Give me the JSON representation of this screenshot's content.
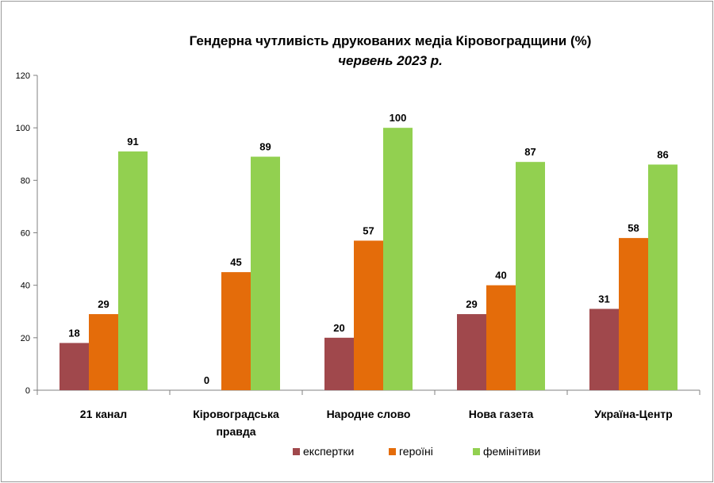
{
  "chart_data": {
    "type": "bar",
    "title": "Гендерна чутливість друкованих медіа Кіровоградщини (%)",
    "subtitle": "червень 2023 р.",
    "categories": [
      [
        "21 канал"
      ],
      [
        "Кіровоградська",
        "правда"
      ],
      [
        "Народне слово"
      ],
      [
        "Нова газета"
      ],
      [
        "Україна-Центр"
      ]
    ],
    "series": [
      {
        "name": "експертки",
        "color": "#a0484c",
        "values": [
          18,
          0,
          20,
          29,
          31
        ]
      },
      {
        "name": "героїні",
        "color": "#e46c0a",
        "values": [
          29,
          45,
          57,
          40,
          58
        ]
      },
      {
        "name": "фемінітиви",
        "color": "#92d050",
        "values": [
          91,
          89,
          100,
          87,
          86
        ]
      }
    ],
    "ylim": [
      0,
      120
    ],
    "yticks": [
      0,
      20,
      40,
      60,
      80,
      100,
      120
    ],
    "grid": false,
    "legend": "bottom",
    "xlabel": "",
    "ylabel": ""
  }
}
